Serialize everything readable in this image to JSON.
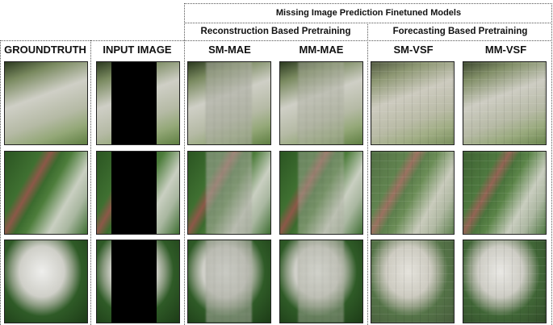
{
  "header": {
    "title": "Missing Image Prediction Finetuned Models",
    "groups": [
      "Reconstruction Based Pretraining",
      "Forecasting Based Pretraining"
    ]
  },
  "columns": [
    "GROUNDTRUTH",
    "INPUT IMAGE",
    "SM-MAE",
    "MM-MAE",
    "SM-VSF",
    "MM-VSF"
  ]
}
